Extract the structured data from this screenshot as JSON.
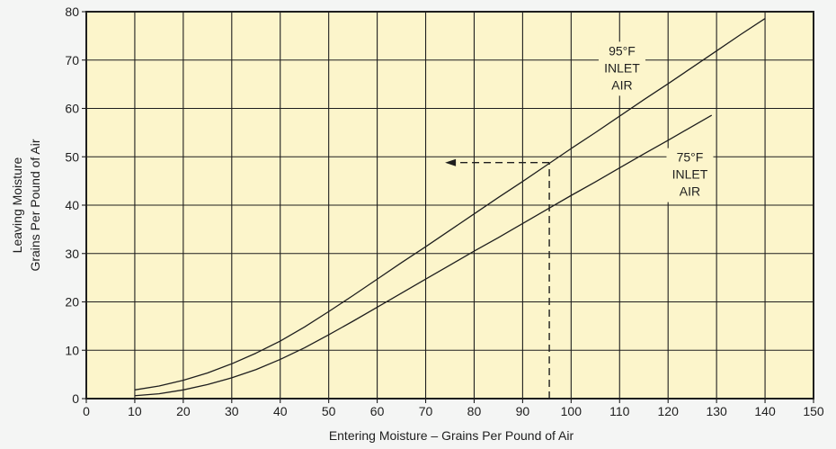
{
  "chart_data": {
    "type": "line",
    "title": "",
    "xlabel": "Entering Moisture – Grains Per Pound of Air",
    "ylabel_lines": [
      "Leaving Moisture",
      "Grains Per Pound of Air"
    ],
    "xlim": [
      0,
      150
    ],
    "ylim": [
      0,
      80
    ],
    "x_ticks": [
      "0",
      "10",
      "20",
      "30",
      "40",
      "50",
      "60",
      "70",
      "80",
      "90",
      "100",
      "110",
      "120",
      "130",
      "140",
      "150"
    ],
    "y_ticks": [
      "0",
      "10",
      "20",
      "30",
      "40",
      "50",
      "60",
      "70",
      "80"
    ],
    "grid": true,
    "series": [
      {
        "name_lines": [
          "95°F",
          "INLET",
          "AIR"
        ],
        "label_anchor": [
          110.5,
          71
        ],
        "x": [
          10,
          15,
          20,
          25,
          30,
          35,
          40,
          45,
          50,
          55,
          60,
          65,
          70,
          75,
          80,
          85,
          90,
          95,
          100,
          105,
          110,
          115,
          120,
          125,
          130,
          135,
          140
        ],
        "y": [
          1.8,
          2.6,
          3.8,
          5.3,
          7.2,
          9.4,
          11.9,
          14.8,
          18.0,
          21.3,
          24.7,
          28.1,
          31.4,
          34.8,
          38.2,
          41.6,
          44.9,
          48.3,
          51.7,
          55.0,
          58.4,
          61.8,
          65.1,
          68.5,
          71.9,
          75.3,
          78.6
        ]
      },
      {
        "name_lines": [
          "75°F",
          "INLET",
          "AIR"
        ],
        "label_anchor": [
          124.5,
          49
        ],
        "x": [
          10,
          15,
          20,
          25,
          30,
          35,
          40,
          45,
          50,
          55,
          60,
          65,
          70,
          75,
          80,
          85,
          90,
          95,
          100,
          105,
          110,
          115,
          120,
          125,
          129
        ],
        "y": [
          0.6,
          1.0,
          1.8,
          2.9,
          4.3,
          6.0,
          8.1,
          10.5,
          13.2,
          16.0,
          18.9,
          21.8,
          24.7,
          27.6,
          30.5,
          33.3,
          36.2,
          39.1,
          42.0,
          44.8,
          47.7,
          50.6,
          53.4,
          56.3,
          58.6
        ]
      }
    ],
    "example_path": {
      "x_value": 95.5,
      "y_value": 48.8,
      "arrow_to_x": 74
    }
  }
}
